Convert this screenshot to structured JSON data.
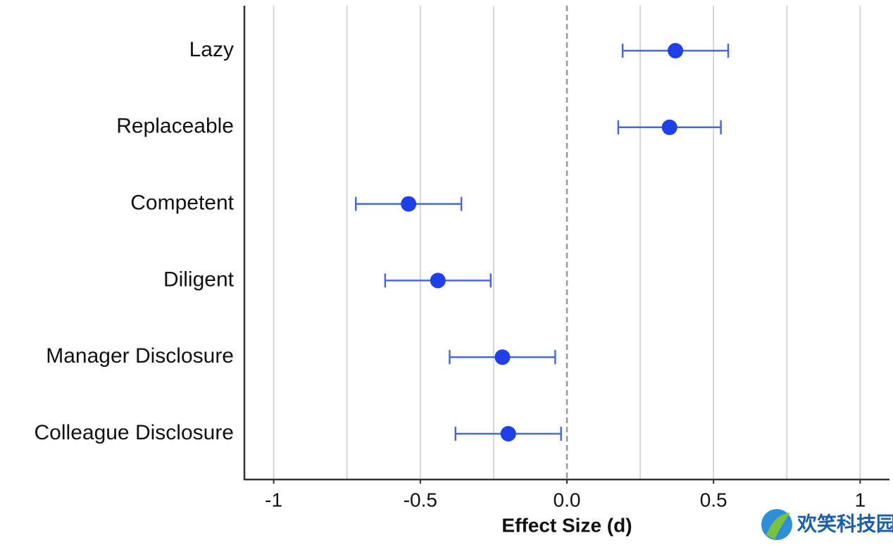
{
  "chart_data": {
    "type": "forest",
    "categories": [
      "Lazy",
      "Replaceable",
      "Competent",
      "Diligent",
      "Manager Disclosure",
      "Colleague Disclosure"
    ],
    "values": [
      0.37,
      0.35,
      -0.54,
      -0.44,
      -0.22,
      -0.2
    ],
    "errors": [
      0.18,
      0.175,
      0.18,
      0.18,
      0.18,
      0.18
    ],
    "color": "#1f3fe8",
    "error_color": "#4a68dc",
    "xlabel": "Effect Size (d)",
    "xlim": [
      -1.1,
      1.1
    ],
    "xticks": [
      -1,
      -0.5,
      {
        "value": 0,
        "label": "0.0"
      },
      0.5,
      1
    ],
    "minor_xticks": [
      -0.75,
      -0.25,
      0.25,
      0.75
    ],
    "reference_line": 0,
    "grid": true,
    "watermark": "欢笑科技园"
  }
}
